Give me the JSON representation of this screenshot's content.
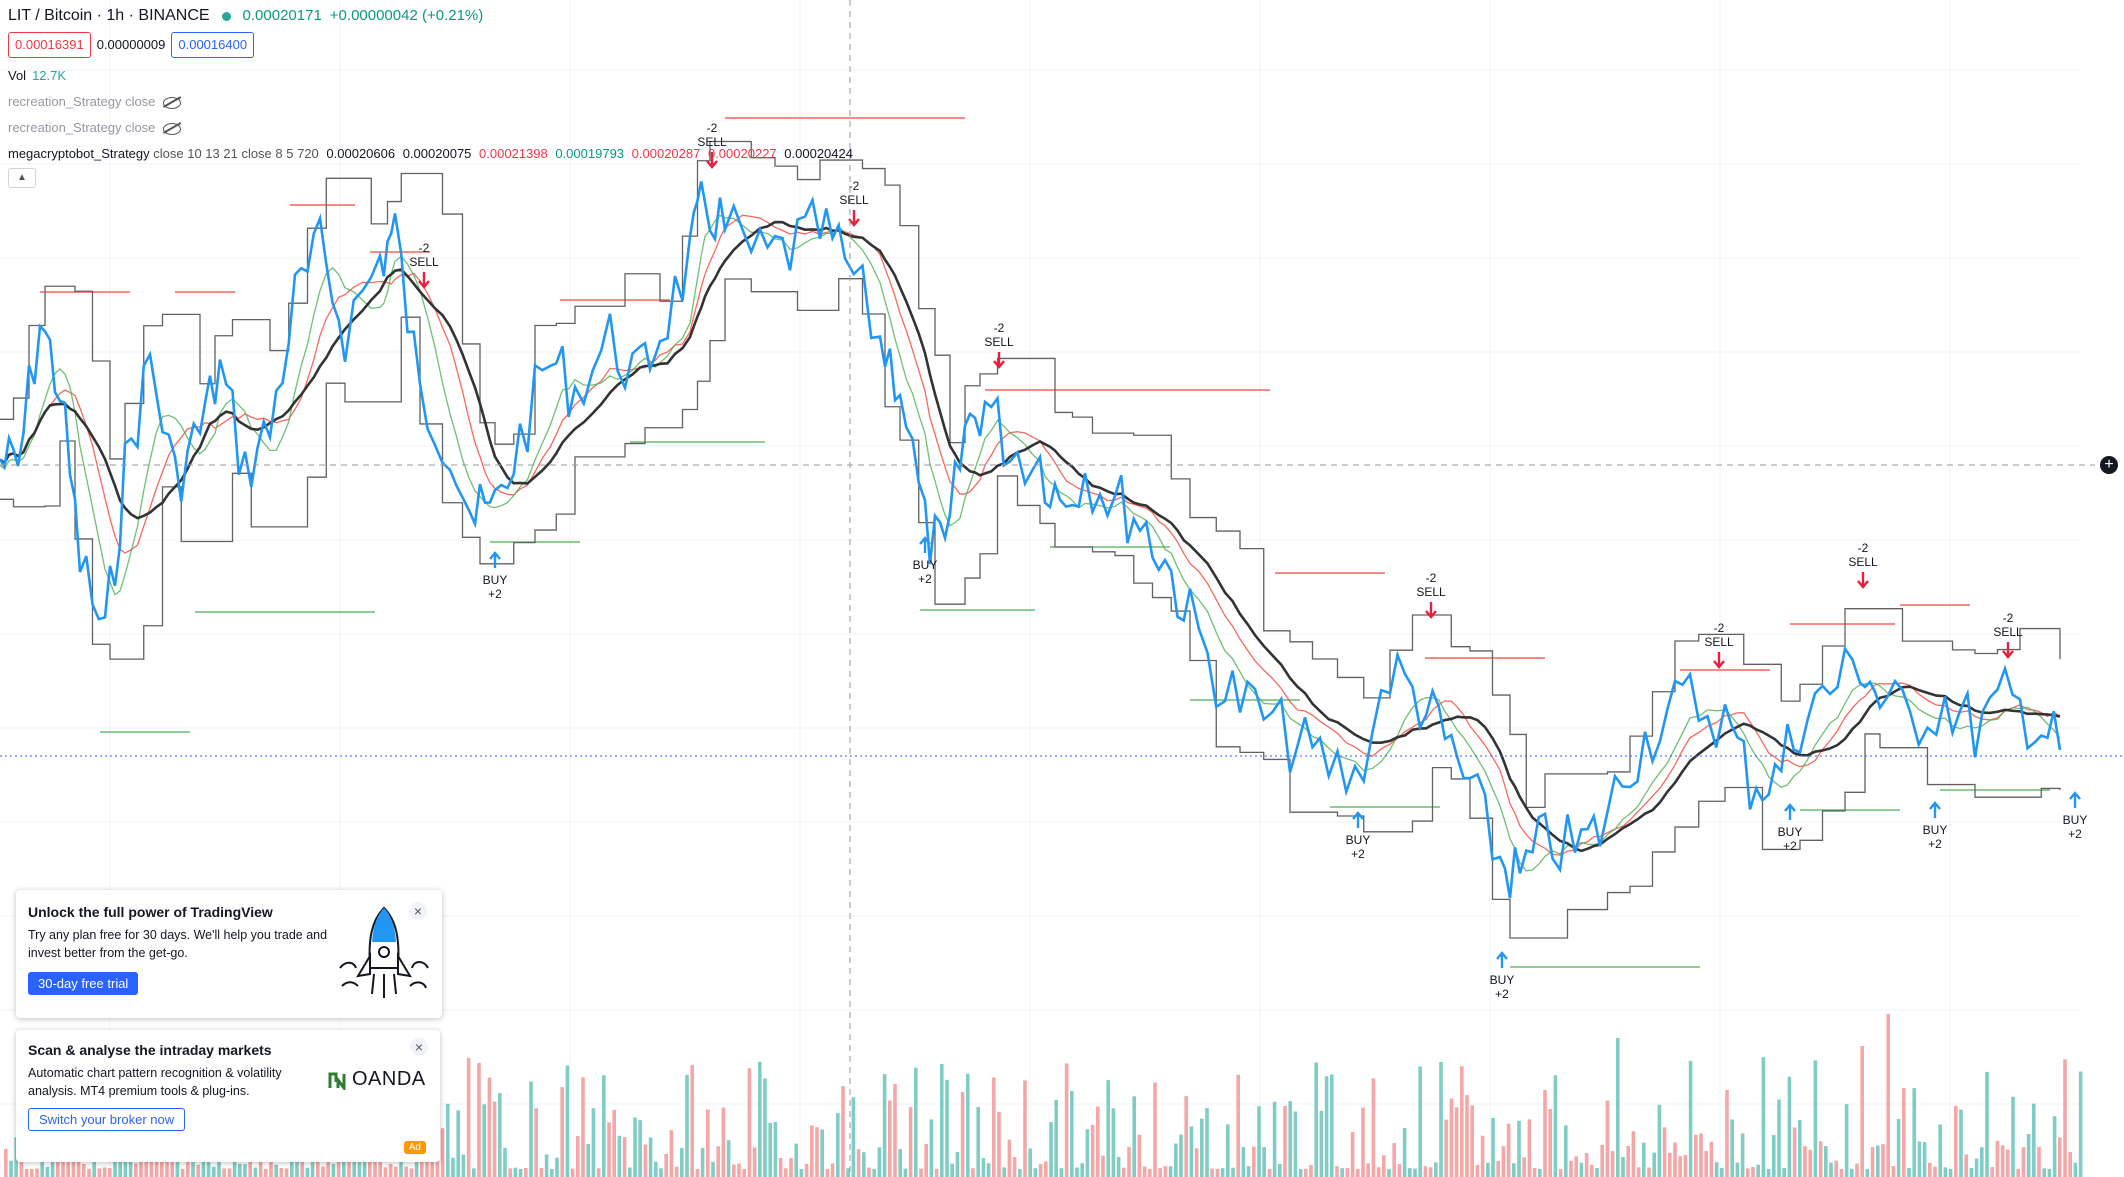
{
  "header": {
    "symbol": "LIT / Bitcoin · 1h · BINANCE",
    "last_price": "0.00020171",
    "change": "+0.00000042 (+0.21%)",
    "bid": "0.00016391",
    "spread": "0.00000009",
    "ask": "0.00016400"
  },
  "indicators": {
    "vol_label": "Vol",
    "vol_value": "12.7K",
    "strategy1": "recreation_Strategy close",
    "strategy2": "recreation_Strategy close",
    "mega_name": "megacryptobot_Strategy",
    "mega_params": "close 10 13 21 close 8 5 720",
    "mega_values": [
      "0.00020606",
      "0.00020075",
      "0.00021398",
      "0.00019793",
      "0.00020287",
      "0.00020227",
      "0.00020424"
    ]
  },
  "signals": [
    {
      "type": "sell",
      "l1": "-2",
      "l2": "SELL"
    },
    {
      "type": "sell",
      "l1": "-2",
      "l2": "SELL"
    },
    {
      "type": "sell",
      "l1": "-2",
      "l2": "SELL"
    },
    {
      "type": "sell",
      "l1": "-2",
      "l2": "SELL"
    },
    {
      "type": "sell",
      "l1": "-2",
      "l2": "SELL"
    },
    {
      "type": "sell",
      "l1": "-2",
      "l2": "SELL"
    },
    {
      "type": "sell",
      "l1": "-2",
      "l2": "SELL"
    },
    {
      "type": "sell",
      "l1": "-2",
      "l2": "SELL"
    },
    {
      "type": "buy",
      "l1": "BUY",
      "l2": "+2"
    },
    {
      "type": "buy",
      "l1": "BUY",
      "l2": "+2"
    },
    {
      "type": "buy",
      "l1": "BUY",
      "l2": "+2"
    },
    {
      "type": "buy",
      "l1": "BUY",
      "l2": "+2"
    },
    {
      "type": "buy",
      "l1": "BUY",
      "l2": "+2"
    },
    {
      "type": "buy",
      "l1": "BUY",
      "l2": "+2"
    },
    {
      "type": "buy",
      "l1": "BUY",
      "l2": "+2"
    }
  ],
  "promo1": {
    "title": "Unlock the full power of TradingView",
    "text": "Try any plan free for 30 days. We'll help you trade and invest better from the get-go.",
    "button": "30-day free trial"
  },
  "promo2": {
    "title": "Scan & analyse the intraday markets",
    "text": "Automatic chart pattern recognition & volatility analysis. MT4 premium tools & plug-ins.",
    "button": "Switch your broker now",
    "logo": "OANDA",
    "ad_badge": "Ad"
  },
  "colors": {
    "price_line": "#2196f3",
    "ma_dark": "#333333",
    "envelope": "#616161",
    "ema_red": "#f44336",
    "ema_green": "#4caf50",
    "vol_up": "#7fcdc4",
    "vol_down": "#f5a6a6"
  }
}
